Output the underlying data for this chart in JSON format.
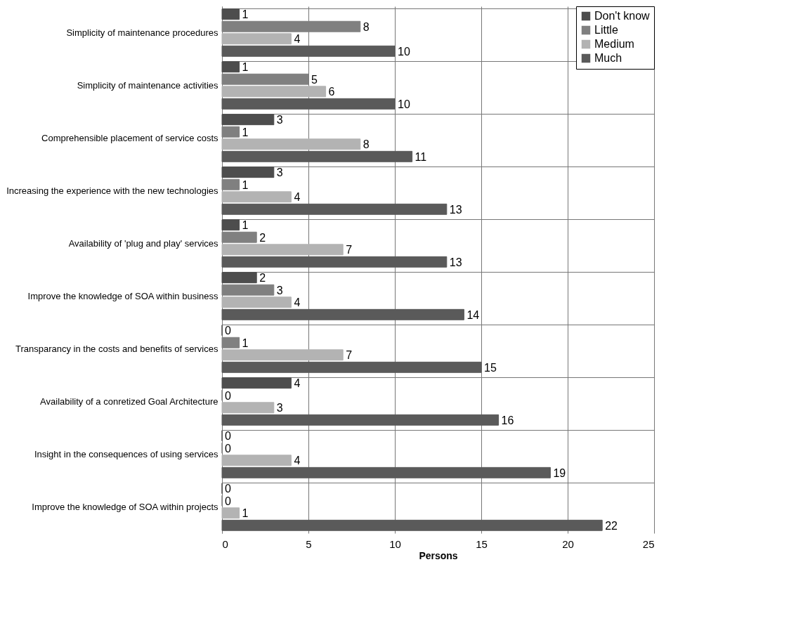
{
  "chart_data": {
    "type": "bar",
    "orientation": "horizontal",
    "xlabel": "Persons",
    "categories": [
      "Simplicity of maintenance procedures",
      "Simplicity of maintenance activities",
      "Comprehensible placement of service costs",
      "Increasing the experience with the new technologies",
      "Availability of 'plug and play' services",
      "Improve the knowledge of SOA within business",
      "Transparancy in the costs and benefits of services",
      "Availability of a conretized Goal Architecture",
      "Insight in the consequences of using services",
      "Improve the knowledge of SOA within projects"
    ],
    "series": [
      {
        "name": "Don't know",
        "color": "#4d4d4d",
        "values": [
          1,
          1,
          3,
          3,
          1,
          2,
          0,
          4,
          0,
          0
        ]
      },
      {
        "name": "Little",
        "color": "#808080",
        "values": [
          8,
          5,
          1,
          1,
          2,
          3,
          1,
          0,
          0,
          0
        ]
      },
      {
        "name": "Medium",
        "color": "#b3b3b3",
        "values": [
          4,
          6,
          8,
          4,
          7,
          4,
          7,
          3,
          4,
          1
        ]
      },
      {
        "name": "Much",
        "color": "#5a5a5a",
        "values": [
          10,
          10,
          11,
          13,
          13,
          14,
          15,
          16,
          19,
          22
        ]
      }
    ],
    "xlim": [
      0,
      25
    ],
    "xticks": [
      0,
      5,
      10,
      15,
      20,
      25
    ],
    "grid": true,
    "legend": "top right",
    "data_labels": true
  }
}
